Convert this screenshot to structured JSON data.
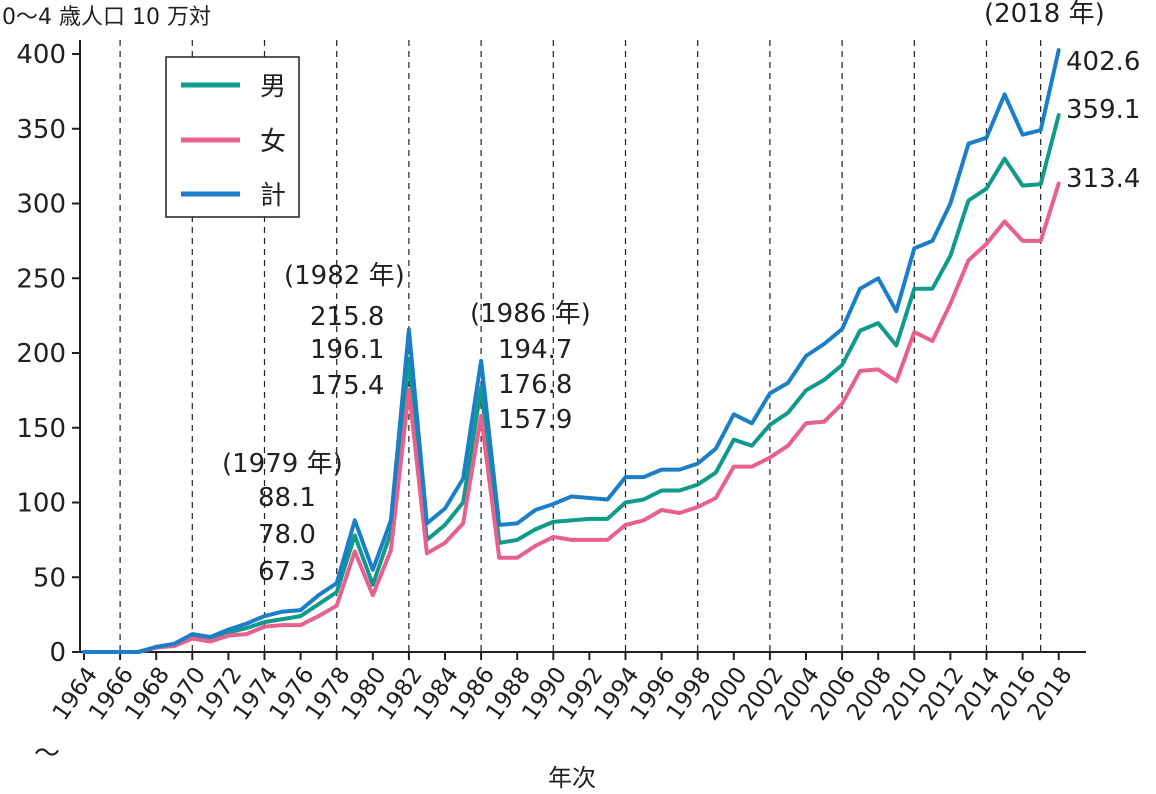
{
  "chart_data": {
    "type": "line",
    "ylabel": "0～4 歳人口 10 万対",
    "xlabel": "年次",
    "axis_break": "～",
    "ylim": [
      0,
      400
    ],
    "xlim": [
      1964,
      2018
    ],
    "y_ticks": [
      0,
      50,
      100,
      150,
      200,
      250,
      300,
      350,
      400
    ],
    "y_tick_labels": [
      "0",
      "50",
      "100",
      "150",
      "200",
      "250",
      "300",
      "350",
      "400"
    ],
    "x_tick_labels": [
      "1964",
      "1966",
      "1968",
      "1970",
      "1972",
      "1974",
      "1976",
      "1978",
      "1980",
      "1982",
      "1984",
      "1986",
      "1988",
      "1990",
      "1992",
      "1994",
      "1996",
      "1998",
      "2000",
      "2002",
      "2004",
      "2006",
      "2008",
      "2010",
      "2012",
      "2014",
      "2016",
      "2018"
    ],
    "x_tick_years": [
      1964,
      1966,
      1968,
      1970,
      1972,
      1974,
      1976,
      1978,
      1980,
      1982,
      1984,
      1986,
      1988,
      1990,
      1992,
      1994,
      1996,
      1998,
      2000,
      2002,
      2004,
      2006,
      2008,
      2010,
      2012,
      2014,
      2016,
      2018
    ],
    "dashed_gridlines_x": [
      1966,
      1970,
      1974,
      1978,
      1982,
      1986,
      1990,
      1994,
      1998,
      2002,
      2006,
      2010,
      2014,
      2017
    ],
    "x": [
      1964,
      1965,
      1966,
      1967,
      1968,
      1969,
      1970,
      1971,
      1972,
      1973,
      1974,
      1975,
      1976,
      1977,
      1978,
      1979,
      1980,
      1981,
      1982,
      1983,
      1984,
      1985,
      1986,
      1987,
      1988,
      1989,
      1990,
      1991,
      1992,
      1993,
      1994,
      1995,
      1996,
      1997,
      1998,
      1999,
      2000,
      2001,
      2002,
      2003,
      2004,
      2005,
      2006,
      2007,
      2008,
      2009,
      2010,
      2011,
      2012,
      2013,
      2014,
      2015,
      2016,
      2017,
      2018
    ],
    "series": [
      {
        "name": "男",
        "color": "#0f9a8a",
        "values": [
          0,
          0,
          0,
          0,
          3,
          5,
          10,
          9,
          13,
          16,
          20,
          22,
          24,
          32,
          40,
          78,
          45,
          80,
          196.1,
          75,
          85,
          100,
          176.8,
          73,
          75,
          82,
          87,
          88,
          89,
          89,
          100,
          102,
          108,
          108,
          112,
          120,
          142,
          138,
          152,
          160,
          175,
          182,
          192,
          215,
          220,
          205,
          243,
          243,
          265,
          302,
          310,
          330,
          312,
          313,
          359.1
        ]
      },
      {
        "name": "女",
        "color": "#e8608e",
        "values": [
          0,
          0,
          0,
          0,
          3,
          4,
          9,
          7,
          11,
          12,
          17,
          18,
          18,
          24,
          31,
          67.3,
          38,
          68,
          175.4,
          66,
          73,
          86,
          157.9,
          63,
          63,
          71,
          77,
          75,
          75,
          75,
          85,
          88,
          95,
          93,
          97,
          103,
          124,
          124,
          130,
          138,
          153,
          154,
          166,
          188,
          189,
          181,
          214,
          208,
          233,
          262,
          273,
          288,
          275,
          275,
          313.4
        ]
      },
      {
        "name": "計",
        "color": "#1a7fc8",
        "values": [
          0,
          0,
          0,
          0,
          3.5,
          5.5,
          12,
          10,
          15,
          19,
          24,
          27,
          28,
          38,
          46,
          88.1,
          55,
          88,
          215.8,
          86,
          96,
          116,
          194.7,
          85,
          86,
          95,
          99,
          104,
          103,
          102,
          117,
          117,
          122,
          122,
          126,
          136,
          159,
          153,
          173,
          180,
          198,
          206,
          216,
          243,
          250,
          228,
          270,
          275,
          300,
          340,
          344,
          373,
          346,
          349,
          402.6
        ]
      }
    ],
    "legend": [
      "男",
      "女",
      "計"
    ],
    "legend_position": "top-left",
    "annotations": [
      {
        "label": "(1979 年)",
        "values": [
          "88.1",
          "78.0",
          "67.3"
        ]
      },
      {
        "label": "(1982 年)",
        "values": [
          "215.8",
          "196.1",
          "175.4"
        ]
      },
      {
        "label": "(1986 年)",
        "values": [
          "194.7",
          "176.8",
          "157.9"
        ]
      },
      {
        "label": "(2018 年)",
        "values": [
          "402.6",
          "359.1",
          "313.4"
        ]
      }
    ]
  }
}
